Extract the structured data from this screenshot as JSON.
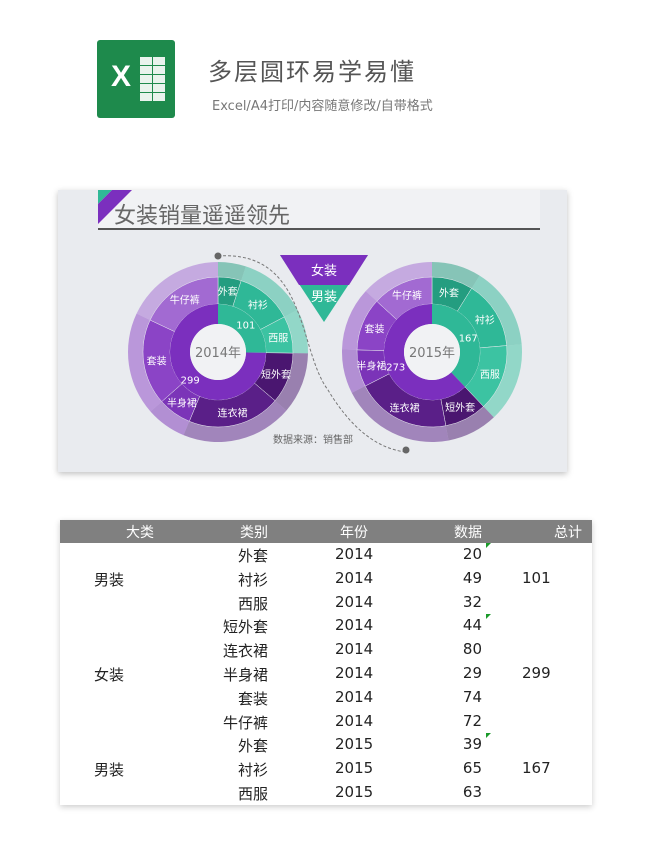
{
  "header": {
    "title": "多层圆环易学易懂",
    "subtitle": "Excel/A4打印/内容随意修改/自带格式",
    "logo_icon": "excel-icon",
    "logo_letter": "X"
  },
  "chart_data": {
    "type": "sunburst",
    "title": "女装销量遥遥领先",
    "source": "数据来源：销售部",
    "legend": [
      {
        "name": "女装",
        "color": "#7b2fbe"
      },
      {
        "name": "男装",
        "color": "#2fb897"
      }
    ],
    "charts": [
      {
        "center_label": "2014年",
        "groups": [
          {
            "name": "男装",
            "total_label": "101",
            "color": "#2fb897",
            "items": [
              {
                "name": "外套",
                "value": 20
              },
              {
                "name": "衬衫",
                "value": 49
              },
              {
                "name": "西服",
                "value": 32
              }
            ]
          },
          {
            "name": "女装",
            "total_label": "299",
            "color": "#7b2fbe",
            "items": [
              {
                "name": "短外套",
                "value": 44
              },
              {
                "name": "连衣裙",
                "value": 80
              },
              {
                "name": "半身裙",
                "value": 29
              },
              {
                "name": "套装",
                "value": 74
              },
              {
                "name": "牛仔裤",
                "value": 72
              }
            ]
          }
        ]
      },
      {
        "center_label": "2015年",
        "groups": [
          {
            "name": "男装",
            "total_label": "167",
            "color": "#2fb897",
            "items": [
              {
                "name": "外套",
                "value": 39
              },
              {
                "name": "衬衫",
                "value": 65
              },
              {
                "name": "西服",
                "value": 63
              }
            ]
          },
          {
            "name": "女装",
            "total_label": "273",
            "color": "#7b2fbe",
            "items": [
              {
                "name": "短外套",
                "value": 40
              },
              {
                "name": "连衣裙",
                "value": 90
              },
              {
                "name": "半身裙",
                "value": 35
              },
              {
                "name": "套装",
                "value": 50
              },
              {
                "name": "牛仔裤",
                "value": 58
              }
            ]
          }
        ]
      }
    ]
  },
  "table": {
    "columns": [
      "大类",
      "类别",
      "年份",
      "数据",
      "总计"
    ],
    "rows": [
      {
        "group": "",
        "cat": "外套",
        "year": "2014",
        "value": "20",
        "total": "",
        "flag": true
      },
      {
        "group": "男装",
        "cat": "衬衫",
        "year": "2014",
        "value": "49",
        "total": "101"
      },
      {
        "group": "",
        "cat": "西服",
        "year": "2014",
        "value": "32",
        "total": ""
      },
      {
        "group": "",
        "cat": "短外套",
        "year": "2014",
        "value": "44",
        "total": "",
        "flag": true
      },
      {
        "group": "",
        "cat": "连衣裙",
        "year": "2014",
        "value": "80",
        "total": ""
      },
      {
        "group": "女装",
        "cat": "半身裙",
        "year": "2014",
        "value": "29",
        "total": "299"
      },
      {
        "group": "",
        "cat": "套装",
        "year": "2014",
        "value": "74",
        "total": ""
      },
      {
        "group": "",
        "cat": "牛仔裤",
        "year": "2014",
        "value": "72",
        "total": ""
      },
      {
        "group": "",
        "cat": "外套",
        "year": "2015",
        "value": "39",
        "total": "",
        "flag": true
      },
      {
        "group": "男装",
        "cat": "衬衫",
        "year": "2015",
        "value": "65",
        "total": "167"
      },
      {
        "group": "",
        "cat": "西服",
        "year": "2015",
        "value": "63",
        "total": ""
      }
    ]
  }
}
